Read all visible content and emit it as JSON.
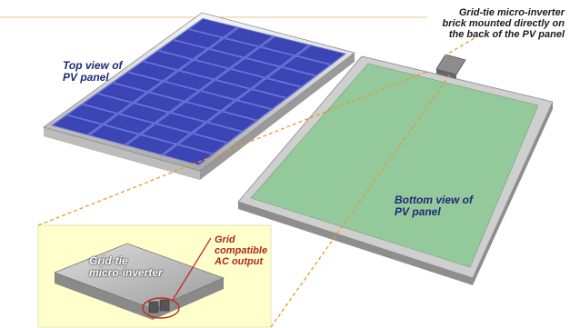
{
  "labels": {
    "top_view": "Top view of\nPV panel",
    "bottom_view": "Bottom view of\nPV panel",
    "inverter": "Grid-tie\nmicro-inverter",
    "grid_output": "Grid\ncompatible\nAC output",
    "brick": "Grid-tie micro-inverter\nbrick mounted directly on\nthe back of the PV panel"
  },
  "colors": {
    "cell_blue": "#3c45b5",
    "panel_frame": "#c9c9c9",
    "back_green": "#93c99b",
    "inset_bg": "#ffffcc",
    "leader_orange": "#e79a2c",
    "callout_red": "#c0281d"
  }
}
